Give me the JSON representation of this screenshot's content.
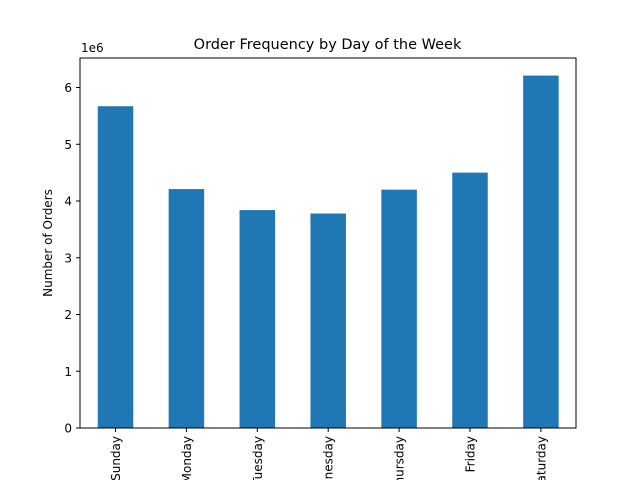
{
  "chart_data": {
    "type": "bar",
    "title": "Order Frequency by Day of the Week",
    "xlabel": "",
    "ylabel": "Number of Orders",
    "offset_label": "1e6",
    "categories": [
      "Sunday",
      "Monday",
      "Tuesday",
      "Wednesday",
      "Thursday",
      "Friday",
      "Saturday"
    ],
    "values": [
      5670000,
      4210000,
      3840000,
      3780000,
      4200000,
      4500000,
      6210000
    ],
    "ylim": [
      0,
      6520000
    ],
    "yticks": [
      0,
      1,
      2,
      3,
      4,
      5,
      6
    ],
    "ytick_scale": 1000000,
    "bar_color": "#1f77b4",
    "grid": false,
    "legend": "none"
  }
}
